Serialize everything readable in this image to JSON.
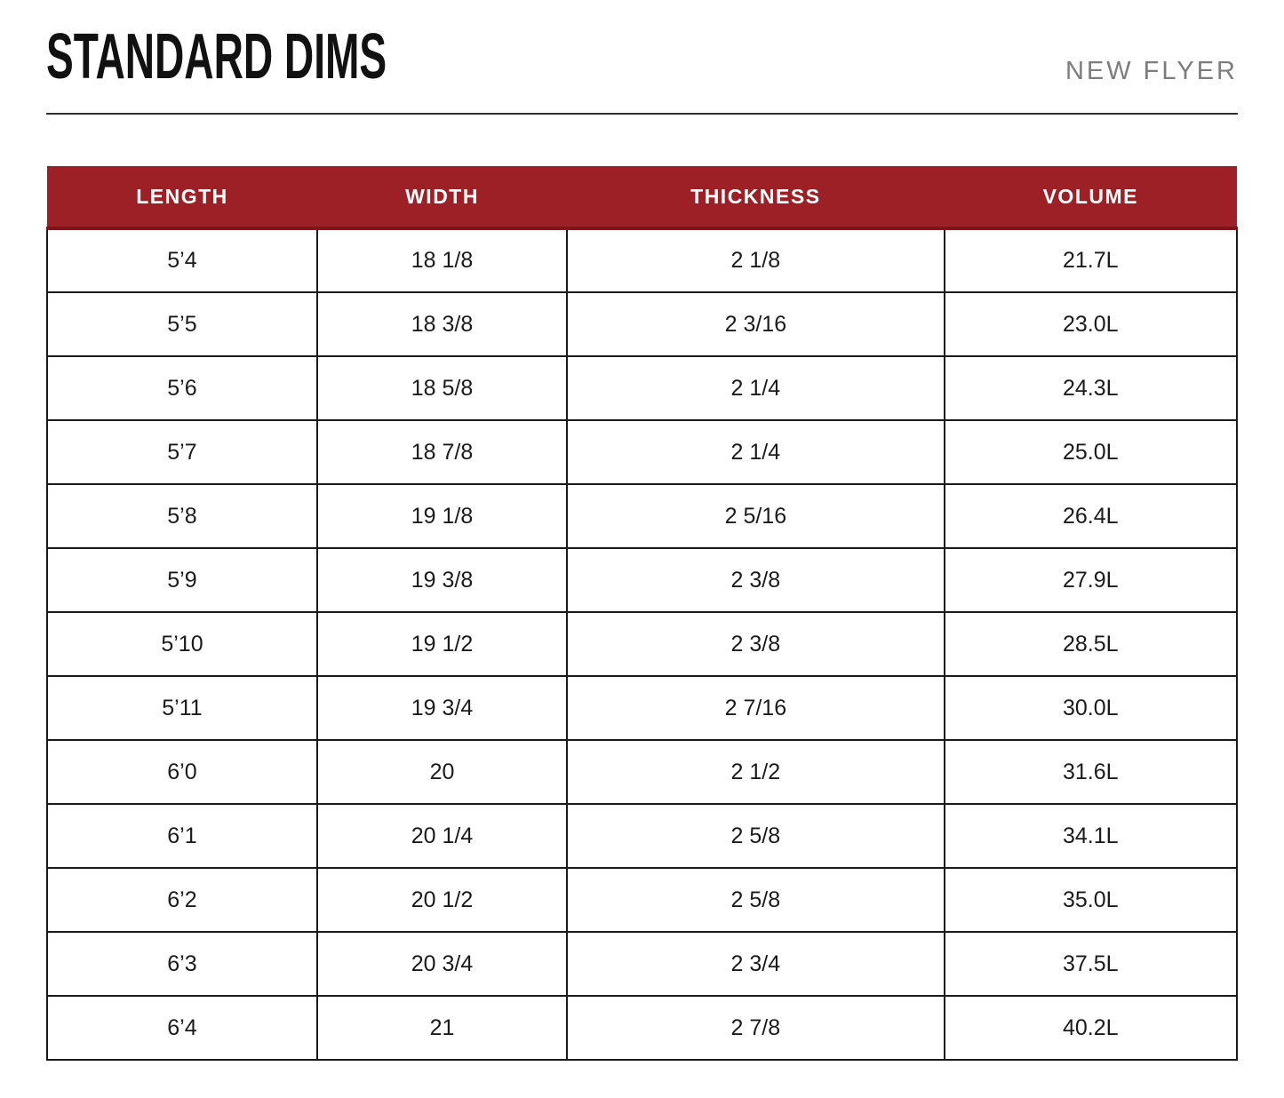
{
  "page": {
    "title": "STANDARD DIMS",
    "subtitle": "NEW FLYER"
  },
  "colors": {
    "header_bg": "#9d2026",
    "header_bg_bottom_edge": "#7c151a",
    "header_text": "#ffffff",
    "body_border": "#1a1a1a",
    "title_text": "#111111",
    "subtitle_text": "#7d7d7d",
    "rule": "#2e2e2e"
  },
  "table": {
    "headers": [
      "LENGTH",
      "WIDTH",
      "THICKNESS",
      "VOLUME"
    ],
    "rows": [
      [
        "5’4",
        "18 1/8",
        "2 1/8",
        "21.7L"
      ],
      [
        "5’5",
        "18 3/8",
        "2 3/16",
        "23.0L"
      ],
      [
        "5’6",
        "18 5/8",
        "2 1/4",
        "24.3L"
      ],
      [
        "5’7",
        "18 7/8",
        "2 1/4",
        "25.0L"
      ],
      [
        "5’8",
        "19 1/8",
        "2 5/16",
        "26.4L"
      ],
      [
        "5’9",
        "19 3/8",
        "2 3/8",
        "27.9L"
      ],
      [
        "5’10",
        "19 1/2",
        "2 3/8",
        "28.5L"
      ],
      [
        "5’11",
        "19 3/4",
        "2 7/16",
        "30.0L"
      ],
      [
        "6’0",
        "20",
        "2 1/2",
        "31.6L"
      ],
      [
        "6’1",
        "20 1/4",
        "2 5/8",
        "34.1L"
      ],
      [
        "6’2",
        "20 1/2",
        "2 5/8",
        "35.0L"
      ],
      [
        "6’3",
        "20 3/4",
        "2 3/4",
        "37.5L"
      ],
      [
        "6’4",
        "21",
        "2 7/8",
        "40.2L"
      ]
    ]
  },
  "chart_data": {
    "type": "table",
    "title": "STANDARD DIMS",
    "subtitle": "NEW FLYER",
    "columns": [
      "LENGTH",
      "WIDTH",
      "THICKNESS",
      "VOLUME"
    ],
    "rows": [
      [
        "5’4",
        "18 1/8",
        "2 1/8",
        "21.7L"
      ],
      [
        "5’5",
        "18 3/8",
        "2 3/16",
        "23.0L"
      ],
      [
        "5’6",
        "18 5/8",
        "2 1/4",
        "24.3L"
      ],
      [
        "5’7",
        "18 7/8",
        "2 1/4",
        "25.0L"
      ],
      [
        "5’8",
        "19 1/8",
        "2 5/16",
        "26.4L"
      ],
      [
        "5’9",
        "19 3/8",
        "2 3/8",
        "27.9L"
      ],
      [
        "5’10",
        "19 1/2",
        "2 3/8",
        "28.5L"
      ],
      [
        "5’11",
        "19 3/4",
        "2 7/16",
        "30.0L"
      ],
      [
        "6’0",
        "20",
        "2 1/2",
        "31.6L"
      ],
      [
        "6’1",
        "20 1/4",
        "2 5/8",
        "34.1L"
      ],
      [
        "6’2",
        "20 1/2",
        "2 5/8",
        "35.0L"
      ],
      [
        "6’3",
        "20 3/4",
        "2 3/4",
        "37.5L"
      ],
      [
        "6’4",
        "21",
        "2 7/8",
        "40.2L"
      ]
    ],
    "volumes_litres": [
      21.7,
      23.0,
      24.3,
      25.0,
      26.4,
      27.9,
      28.5,
      30.0,
      31.6,
      34.1,
      35.0,
      37.5,
      40.2
    ]
  }
}
